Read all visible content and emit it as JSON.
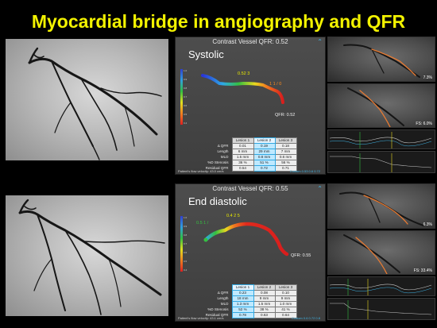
{
  "title": "Myocardial bridge in angiography and QFR",
  "panels": [
    {
      "id": "systolic",
      "header": "Contrast Vessel QFR: 0.52",
      "phase": "Systolic",
      "end_qfr_label": "QFR: 0.52",
      "segment_labels": [
        "0.52 3",
        "1 1 / 0"
      ],
      "colorbar_ticks": [
        "1.0",
        "0.9",
        "0.8",
        "0.7",
        "0.6",
        "0.5",
        "0.4"
      ],
      "lesion_headers": [
        "Lesion 1",
        "Lesion 2",
        "Lesion 3"
      ],
      "highlighted_lesion": 1,
      "rows": [
        {
          "label": "Δ QFR",
          "values": [
            "0.01",
            "0.19",
            "0.18"
          ]
        },
        {
          "label": "Length",
          "values": [
            "6 mm",
            "29 mm",
            "7 mm"
          ]
        },
        {
          "label": "MLD",
          "values": [
            "1.5 mm",
            "0.8 mm",
            "0.6 mm"
          ]
        },
        {
          "label": "%D Stenosis",
          "values": [
            "36 %",
            "51 %",
            "56 %"
          ]
        },
        {
          "label": "Residual QFR",
          "values": [
            "0.54",
            "0.72",
            "0.71"
          ]
        }
      ],
      "flow_velocity": "Patient's flow velocity: 43.0 cm/s",
      "legend": "Custom  0.53  0.6  0.72",
      "right_pct_1": "7.3%",
      "right_pct_2": "FS: 6.0%"
    },
    {
      "id": "end_diastolic",
      "header": "Contrast Vessel QFR: 0.55",
      "phase": "End diastolic",
      "end_qfr_label": "QFR: 0.55",
      "segment_labels": [
        "0.5 1 /",
        "0.4 2 5"
      ],
      "colorbar_ticks": [
        "1.0",
        "0.9",
        "0.8",
        "0.7",
        "0.6",
        "0.5",
        "0.4"
      ],
      "lesion_headers": [
        "Lesion 1",
        "Lesion 2",
        "Lesion 3"
      ],
      "highlighted_lesion": 0,
      "rows": [
        {
          "label": "Δ QFR",
          "values": [
            "0.23",
            "0.08",
            "0.10"
          ]
        },
        {
          "label": "Length",
          "values": [
            "18 mm",
            "9 mm",
            "9 mm"
          ]
        },
        {
          "label": "MLD",
          "values": [
            "1.3 mm",
            "1.5 mm",
            "1.0 mm"
          ]
        },
        {
          "label": "%D Stenosis",
          "values": [
            "52 %",
            "38 %",
            "41 %"
          ]
        },
        {
          "label": "Residual QFR",
          "values": [
            "0.78",
            "0.63",
            "0.64"
          ]
        }
      ],
      "flow_velocity": "Patient's flow velocity: 43.1 cm/s",
      "legend": "Custom  0.6  0.72  0.8",
      "right_pct_1": "6.3%",
      "right_pct_2": "FS: 33.4%"
    }
  ]
}
